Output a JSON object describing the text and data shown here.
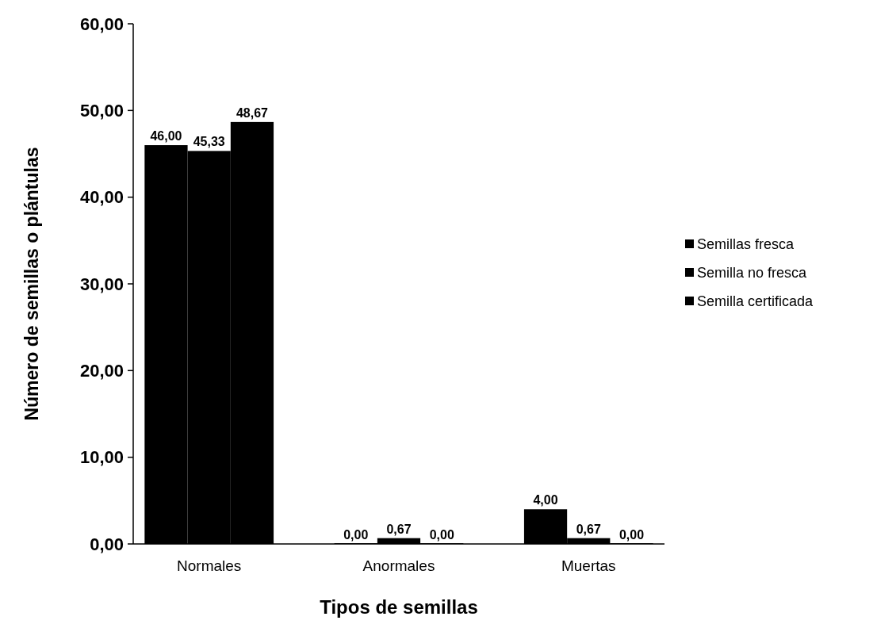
{
  "chart_data": {
    "type": "bar",
    "xlabel": "Tipos de semillas",
    "ylabel": "Número de semillas o plántulas",
    "categories": [
      "Normales",
      "Anormales",
      "Muertas"
    ],
    "series": [
      {
        "name": "Semillas fresca",
        "color": "#000000",
        "values": [
          46,
          0,
          4
        ],
        "value_labels": [
          "46,00",
          "0,00",
          "4,00"
        ]
      },
      {
        "name": "Semilla no fresca",
        "color": "#000000",
        "values": [
          45.33,
          0.67,
          0.67
        ],
        "value_labels": [
          "45,33",
          "0,67",
          "0,67"
        ]
      },
      {
        "name": "Semilla certificada",
        "color": "#000000",
        "values": [
          48.67,
          0,
          0
        ],
        "value_labels": [
          "48,67",
          "0,00",
          "0,00"
        ]
      }
    ],
    "ylim": [
      0,
      60
    ],
    "yticks": [
      {
        "value": 0,
        "label": "0,00"
      },
      {
        "value": 10,
        "label": "10,00"
      },
      {
        "value": 20,
        "label": "20,00"
      },
      {
        "value": 30,
        "label": "30,00"
      },
      {
        "value": 40,
        "label": "40,00"
      },
      {
        "value": 50,
        "label": "50,00"
      },
      {
        "value": 60,
        "label": "60,00"
      }
    ],
    "legend": "right",
    "grid": false
  }
}
